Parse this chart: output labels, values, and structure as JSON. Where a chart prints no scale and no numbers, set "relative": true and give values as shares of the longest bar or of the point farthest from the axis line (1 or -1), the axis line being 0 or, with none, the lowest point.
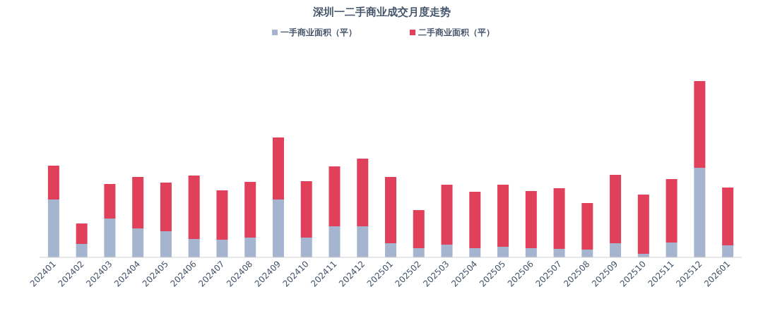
{
  "chart_data": {
    "type": "bar",
    "title": "深圳一二手商业成交月度走势",
    "stacked": true,
    "relative": true,
    "legend": "top",
    "categories": [
      "202401",
      "202402",
      "202403",
      "202404",
      "202405",
      "202406",
      "202407",
      "202408",
      "202409",
      "202410",
      "202411",
      "202412",
      "202501",
      "202502",
      "202503",
      "202504",
      "202505",
      "202506",
      "202507",
      "202508",
      "202509",
      "202510",
      "202511",
      "202512",
      "202601"
    ],
    "series": [
      {
        "name": "一手商业面积（平）",
        "color": "#a5b5d0",
        "values": [
          0.328,
          0.076,
          0.22,
          0.164,
          0.148,
          0.104,
          0.1,
          0.112,
          0.328,
          0.112,
          0.176,
          0.176,
          0.08,
          0.052,
          0.072,
          0.052,
          0.06,
          0.052,
          0.048,
          0.044,
          0.08,
          0.02,
          0.084,
          0.508,
          0.068
        ]
      },
      {
        "name": "二手商业面积（平）",
        "color": "#e0405a",
        "values": [
          0.192,
          0.116,
          0.196,
          0.292,
          0.276,
          0.36,
          0.28,
          0.316,
          0.352,
          0.32,
          0.34,
          0.384,
          0.376,
          0.216,
          0.34,
          0.32,
          0.352,
          0.324,
          0.344,
          0.264,
          0.388,
          0.336,
          0.36,
          0.492,
          0.328
        ]
      }
    ]
  }
}
